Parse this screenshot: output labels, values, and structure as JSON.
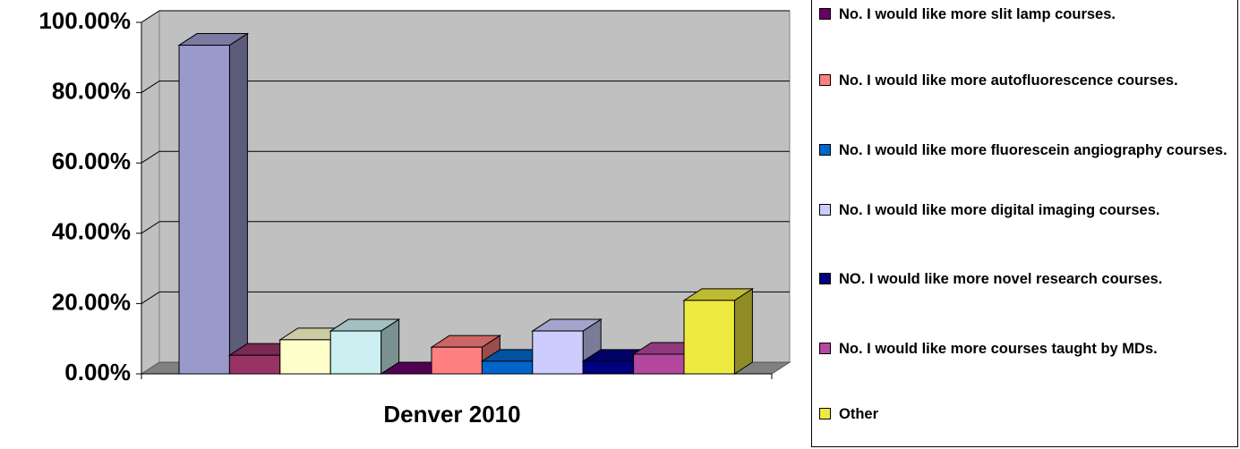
{
  "chart_data": {
    "type": "bar3d",
    "categories": [
      "Denver 2010"
    ],
    "series": [
      {
        "name": null,
        "color": "#9999cc",
        "values": [
          93.5
        ]
      },
      {
        "name": null,
        "color": "#993366",
        "values": [
          5.3
        ]
      },
      {
        "name": null,
        "color": "#ffffcc",
        "values": [
          9.7
        ]
      },
      {
        "name": null,
        "color": "#ccf0f2",
        "values": [
          12.2
        ]
      },
      {
        "name": "No. I would like more slit lamp courses.",
        "color": "#660066",
        "values": [
          0
        ]
      },
      {
        "name": "No. I would like more autofluorescence courses.",
        "color": "#ff8080",
        "values": [
          7.6
        ]
      },
      {
        "name": "No. I would like more fluorescein angiography courses.",
        "color": "#0066cc",
        "values": [
          3.6
        ]
      },
      {
        "name": "No. I would like more digital imaging courses.",
        "color": "#ccccff",
        "values": [
          12.2
        ]
      },
      {
        "name": "NO. I would like more novel research courses.",
        "color": "#000080",
        "values": [
          3.6
        ]
      },
      {
        "name": "No. I would like more courses taught by MDs.",
        "color": "#b3489e",
        "values": [
          5.6
        ]
      },
      {
        "name": "Other",
        "color": "#eeea3f",
        "values": [
          20.9
        ]
      }
    ],
    "ylim": [
      0,
      100
    ],
    "yticks": [
      {
        "value": 0,
        "label": "0.00%"
      },
      {
        "value": 20,
        "label": "20.00%"
      },
      {
        "value": 40,
        "label": "40.00%"
      },
      {
        "value": 60,
        "label": "60.00%"
      },
      {
        "value": 80,
        "label": "80.00%"
      },
      {
        "value": 100,
        "label": "100.00%"
      }
    ],
    "grid": true
  }
}
